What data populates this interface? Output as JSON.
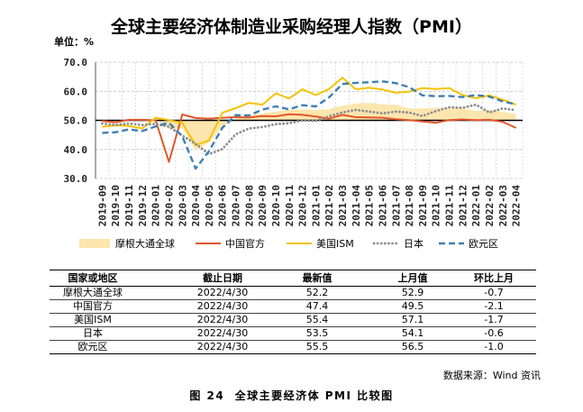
{
  "chart_data": {
    "type": "line",
    "title": "全球主要经济体制造业采购经理人指数（PMI）",
    "ylabel": "单位：%",
    "ylim": [
      30,
      70
    ],
    "yticks": [
      30,
      40,
      50,
      60,
      70
    ],
    "ytick_labels": [
      "30.0",
      "40.0",
      "50.0",
      "60.0",
      "70.0"
    ],
    "x_axis_crosses_y": 50,
    "grid": true,
    "legend_position": "bottom",
    "categories": [
      "2019-09",
      "2019-10",
      "2019-11",
      "2019-12",
      "2020-01",
      "2020-02",
      "2020-03",
      "2020-04",
      "2020-05",
      "2020-06",
      "2020-07",
      "2020-08",
      "2020-09",
      "2020-10",
      "2020-11",
      "2020-12",
      "2021-01",
      "2021-02",
      "2021-03",
      "2021-04",
      "2021-05",
      "2021-06",
      "2021-07",
      "2021-08",
      "2021-09",
      "2021-10",
      "2021-11",
      "2021-12",
      "2022-01",
      "2022-02",
      "2022-03",
      "2022-04"
    ],
    "series": [
      {
        "name": "摩根大通全球",
        "mark": "area",
        "line_style": "area",
        "color": "#FCE6AE",
        "values": [
          49.7,
          49.8,
          50.3,
          50.1,
          50.4,
          47.1,
          47.3,
          39.6,
          42.4,
          47.8,
          50.3,
          51.8,
          52.4,
          53.0,
          53.7,
          53.8,
          53.5,
          53.9,
          55.0,
          55.8,
          56.0,
          55.5,
          55.4,
          54.1,
          54.1,
          54.3,
          54.2,
          54.3,
          53.2,
          53.6,
          52.9,
          52.2
        ]
      },
      {
        "name": "中国官方",
        "mark": "line",
        "line_style": "solid",
        "color": "#E2572B",
        "values": [
          49.8,
          49.3,
          50.2,
          50.2,
          50.0,
          35.7,
          52.0,
          50.8,
          50.6,
          50.9,
          51.1,
          51.0,
          51.5,
          51.4,
          52.1,
          51.9,
          51.3,
          50.6,
          51.9,
          51.1,
          51.0,
          50.9,
          50.4,
          50.1,
          49.6,
          49.2,
          50.1,
          50.3,
          50.1,
          50.2,
          49.5,
          47.4
        ]
      },
      {
        "name": "美国ISM",
        "mark": "line",
        "line_style": "solid",
        "color": "#F5C300",
        "values": [
          47.8,
          48.3,
          48.1,
          47.2,
          50.9,
          50.1,
          49.1,
          41.5,
          43.1,
          52.6,
          54.2,
          56.0,
          55.4,
          59.3,
          57.5,
          60.7,
          58.7,
          60.8,
          64.7,
          60.7,
          61.2,
          60.6,
          59.5,
          59.9,
          61.1,
          60.8,
          61.1,
          58.7,
          57.6,
          58.6,
          57.1,
          55.4
        ]
      },
      {
        "name": "日本",
        "mark": "line",
        "line_style": "dotted",
        "color": "#8E8E8E",
        "values": [
          48.9,
          48.4,
          48.9,
          48.4,
          48.8,
          47.8,
          44.8,
          41.9,
          38.4,
          40.1,
          45.2,
          47.2,
          47.7,
          48.7,
          49.0,
          50.0,
          49.8,
          51.4,
          52.7,
          53.6,
          53.0,
          52.4,
          53.0,
          52.7,
          51.5,
          53.2,
          54.5,
          54.3,
          55.4,
          52.7,
          54.1,
          53.5
        ]
      },
      {
        "name": "欧元区",
        "mark": "line",
        "line_style": "dashed",
        "color": "#3F7FB3",
        "values": [
          45.7,
          45.9,
          46.9,
          46.3,
          47.9,
          49.2,
          44.5,
          33.4,
          39.4,
          47.4,
          51.8,
          51.7,
          53.7,
          54.8,
          53.8,
          55.2,
          54.8,
          57.9,
          62.5,
          62.9,
          63.1,
          63.4,
          62.8,
          61.4,
          58.6,
          58.3,
          58.4,
          58.0,
          58.7,
          58.2,
          56.5,
          55.5
        ]
      }
    ]
  },
  "table": {
    "headers": [
      "国家或地区",
      "截止日期",
      "最新值",
      "上月值",
      "环比上月"
    ],
    "rows": [
      [
        "摩根大通全球",
        "2022/4/30",
        "52.2",
        "52.9",
        "-0.7"
      ],
      [
        "中国官方",
        "2022/4/30",
        "47.4",
        "49.5",
        "-2.1"
      ],
      [
        "美国ISM",
        "2022/4/30",
        "55.4",
        "57.1",
        "-1.7"
      ],
      [
        "日本",
        "2022/4/30",
        "53.5",
        "54.1",
        "-0.6"
      ],
      [
        "欧元区",
        "2022/4/30",
        "55.5",
        "56.5",
        "-1.0"
      ]
    ]
  },
  "footer": {
    "source": "数据来源：Wind 资讯",
    "caption": "图 24  全球主要经济体 PMI 比较图"
  }
}
